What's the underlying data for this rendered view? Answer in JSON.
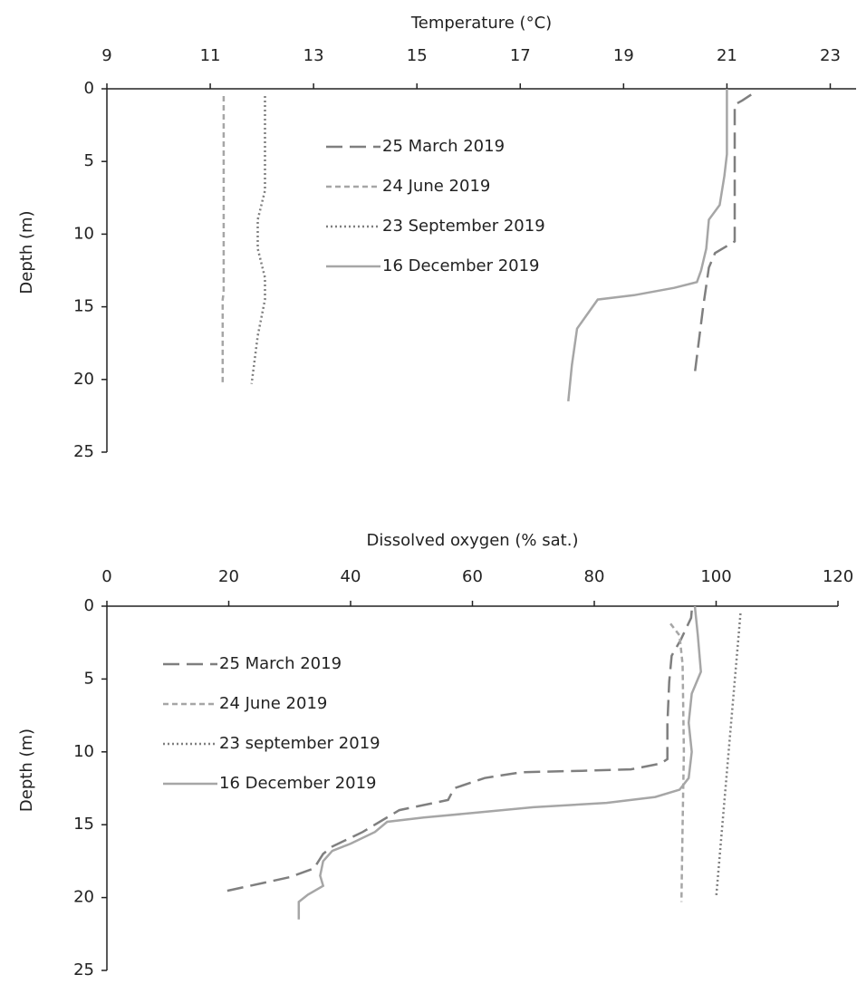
{
  "chart_data": [
    {
      "type": "line",
      "title": "Temperature (°C)",
      "y_label": "Depth (m)",
      "xlim": [
        9,
        23.5
      ],
      "xticks": [
        9,
        11,
        13,
        15,
        17,
        19,
        21,
        23
      ],
      "ylim": [
        0,
        25
      ],
      "yticks": [
        0,
        5,
        10,
        15,
        20,
        25
      ],
      "y_inverted": true,
      "x_axis_top": true,
      "legend": "upper center",
      "series": [
        {
          "name": "25 March 2019",
          "color": "#7f7f7f",
          "style": "long-dash",
          "x": [
            21.47,
            21.3,
            21.15,
            21.15,
            20.77,
            20.65,
            20.54,
            20.38
          ],
          "values": [
            0.4,
            0.8,
            1.1,
            10.5,
            11.3,
            12.3,
            15,
            19.5
          ]
        },
        {
          "name": "24 June 2019",
          "color": "#a6a6a6",
          "style": "dash",
          "x": [
            11.26,
            11.26,
            11.24,
            11.24
          ],
          "values": [
            0.5,
            14,
            14.5,
            20.3
          ]
        },
        {
          "name": "23 September 2019",
          "color": "#7f7f7f",
          "style": "dot",
          "x": [
            12.06,
            12.06,
            11.92,
            11.92,
            12.06,
            12.06,
            11.92,
            11.8
          ],
          "values": [
            0.5,
            7,
            9,
            11,
            13,
            14.5,
            17,
            20.3
          ]
        },
        {
          "name": "16 December 2019",
          "color": "#a6a6a6",
          "style": "solid",
          "x": [
            21.0,
            21.0,
            20.95,
            20.86,
            20.65,
            20.6,
            20.5,
            20.42,
            19.98,
            19.2,
            18.5,
            18.3,
            18.1,
            18.0,
            17.93
          ],
          "values": [
            0,
            4.5,
            6,
            8,
            9,
            11,
            12.5,
            13.3,
            13.7,
            14.2,
            14.5,
            15.5,
            16.5,
            19,
            21.5
          ]
        }
      ]
    },
    {
      "type": "line",
      "title": "Dissolved oxygen (% sat.)",
      "y_label": "Depth (m)",
      "xlim": [
        0,
        120
      ],
      "xticks": [
        0,
        20,
        40,
        60,
        80,
        100,
        120
      ],
      "ylim": [
        0,
        25
      ],
      "yticks": [
        0,
        5,
        10,
        15,
        20,
        25
      ],
      "y_inverted": true,
      "x_axis_top": true,
      "legend": "upper left",
      "series": [
        {
          "name": "25 March 2019",
          "color": "#7f7f7f",
          "style": "long-dash",
          "x": [
            96,
            95.9,
            94.2,
            92.7,
            92.3,
            92,
            92,
            90.9,
            86,
            78,
            68,
            62,
            57,
            56,
            48,
            42,
            37,
            35.5,
            34,
            30,
            19
          ],
          "values": [
            0.3,
            0.8,
            2.3,
            3.4,
            5.2,
            8.1,
            10.5,
            10.8,
            11.2,
            11.3,
            11.4,
            11.8,
            12.5,
            13.3,
            14,
            15.5,
            16.5,
            17,
            18,
            18.6,
            19.6
          ]
        },
        {
          "name": "24 June 2019",
          "color": "#a6a6a6",
          "style": "dash",
          "x": [
            92.5,
            94,
            94.5,
            94.7,
            94.5,
            94.3
          ],
          "values": [
            1.2,
            2,
            4,
            10,
            15,
            20.3
          ]
        },
        {
          "name": "23 september 2019",
          "color": "#7f7f7f",
          "style": "dot",
          "x": [
            104,
            100
          ],
          "values": [
            0.5,
            20
          ]
        },
        {
          "name": "16 December 2019",
          "color": "#a6a6a6",
          "style": "solid",
          "x": [
            96.5,
            97,
            97.5,
            96,
            95.5,
            96,
            95.5,
            94,
            90,
            82,
            70,
            60,
            52,
            46,
            44,
            40,
            37,
            35.5,
            35,
            35.5,
            33,
            31.5,
            31.5
          ],
          "values": [
            0,
            2,
            4.5,
            6,
            8,
            10,
            11.8,
            12.6,
            13.1,
            13.5,
            13.8,
            14.2,
            14.5,
            14.8,
            15.5,
            16.3,
            16.8,
            17.5,
            18.5,
            19.2,
            19.8,
            20.3,
            21.5
          ]
        }
      ]
    }
  ]
}
